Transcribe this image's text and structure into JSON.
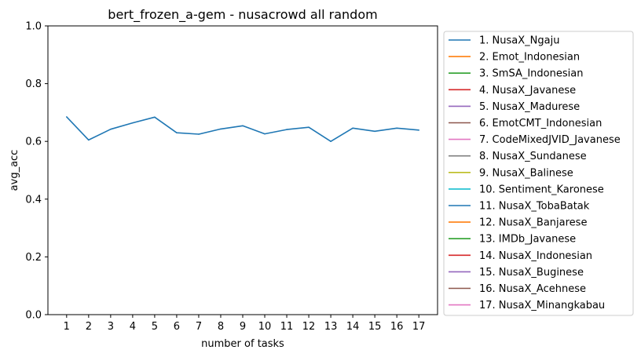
{
  "chart_data": {
    "type": "line",
    "title": "bert_frozen_a-gem - nusacrowd all random",
    "xlabel": "number of tasks",
    "ylabel": "avg_acc",
    "x": [
      1,
      2,
      3,
      4,
      5,
      6,
      7,
      8,
      9,
      10,
      11,
      12,
      13,
      14,
      15,
      16,
      17
    ],
    "xlim": [
      0.15,
      17.85
    ],
    "ylim": [
      0.0,
      1.0
    ],
    "y_ticks": [
      "0.0",
      "0.2",
      "0.4",
      "0.6",
      "0.8",
      "1.0"
    ],
    "x_ticks": [
      "1",
      "2",
      "3",
      "4",
      "5",
      "6",
      "7",
      "8",
      "9",
      "10",
      "11",
      "12",
      "13",
      "14",
      "15",
      "16",
      "17"
    ],
    "grid": false,
    "legend_placement": "outside-right",
    "series": [
      {
        "name": "1. NusaX_Ngaju",
        "color": "#1f77b4",
        "values": [
          0.685,
          0.605,
          0.642,
          0.664,
          0.684,
          0.63,
          0.625,
          0.643,
          0.654,
          0.626,
          0.641,
          0.649,
          0.6,
          0.646,
          0.635,
          0.646,
          0.639
        ]
      }
    ],
    "legend": [
      {
        "label": "1. NusaX_Ngaju",
        "color": "#1f77b4"
      },
      {
        "label": "2. Emot_Indonesian",
        "color": "#ff7f0e"
      },
      {
        "label": "3. SmSA_Indonesian",
        "color": "#2ca02c"
      },
      {
        "label": "4. NusaX_Javanese",
        "color": "#d62728"
      },
      {
        "label": "5. NusaX_Madurese",
        "color": "#9467bd"
      },
      {
        "label": "6. EmotCMT_Indonesian",
        "color": "#8c564b"
      },
      {
        "label": "7. CodeMixedJVID_Javanese",
        "color": "#e377c2"
      },
      {
        "label": "8. NusaX_Sundanese",
        "color": "#7f7f7f"
      },
      {
        "label": "9. NusaX_Balinese",
        "color": "#bcbd22"
      },
      {
        "label": "10. Sentiment_Karonese",
        "color": "#17becf"
      },
      {
        "label": "11. NusaX_TobaBatak",
        "color": "#1f77b4"
      },
      {
        "label": "12. NusaX_Banjarese",
        "color": "#ff7f0e"
      },
      {
        "label": "13. IMDb_Javanese",
        "color": "#2ca02c"
      },
      {
        "label": "14. NusaX_Indonesian",
        "color": "#d62728"
      },
      {
        "label": "15. NusaX_Buginese",
        "color": "#9467bd"
      },
      {
        "label": "16. NusaX_Acehnese",
        "color": "#8c564b"
      },
      {
        "label": "17. NusaX_Minangkabau",
        "color": "#e377c2"
      }
    ]
  }
}
